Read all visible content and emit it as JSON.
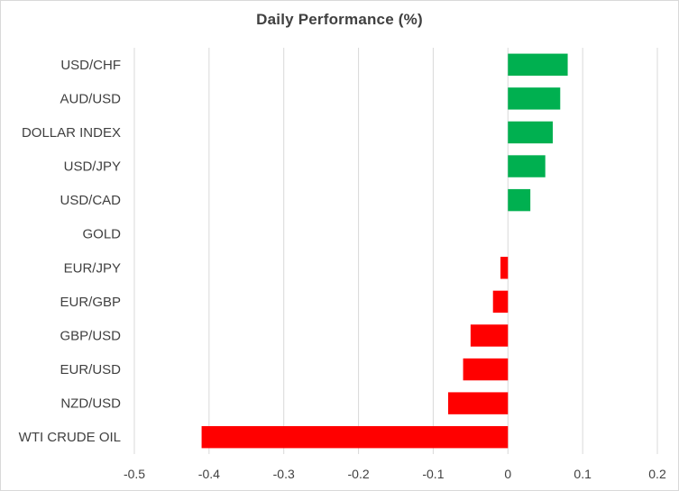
{
  "chart_data": {
    "type": "bar",
    "orientation": "horizontal",
    "title": "Daily Performance (%)",
    "categories": [
      "USD/CHF",
      "AUD/USD",
      "DOLLAR INDEX",
      "USD/JPY",
      "USD/CAD",
      "GOLD",
      "EUR/JPY",
      "EUR/GBP",
      "GBP/USD",
      "EUR/USD",
      "NZD/USD",
      "WTI CRUDE OIL"
    ],
    "values": [
      0.08,
      0.07,
      0.06,
      0.05,
      0.03,
      0,
      -0.01,
      -0.02,
      -0.05,
      -0.06,
      -0.08,
      -0.41
    ],
    "xlim": [
      -0.5,
      0.2
    ],
    "x_ticks": [
      -0.5,
      -0.4,
      -0.3,
      -0.2,
      -0.1,
      0,
      0.1,
      0.2
    ],
    "x_tick_labels": [
      "-0.5",
      "-0.4",
      "-0.3",
      "-0.2",
      "-0.1",
      "0",
      "0.1",
      "0.2"
    ],
    "grid": "vertical",
    "legend": "none",
    "colors": {
      "positive": "#00b050",
      "negative": "#ff0000",
      "grid": "#d9d9d9",
      "text": "#404040"
    }
  }
}
